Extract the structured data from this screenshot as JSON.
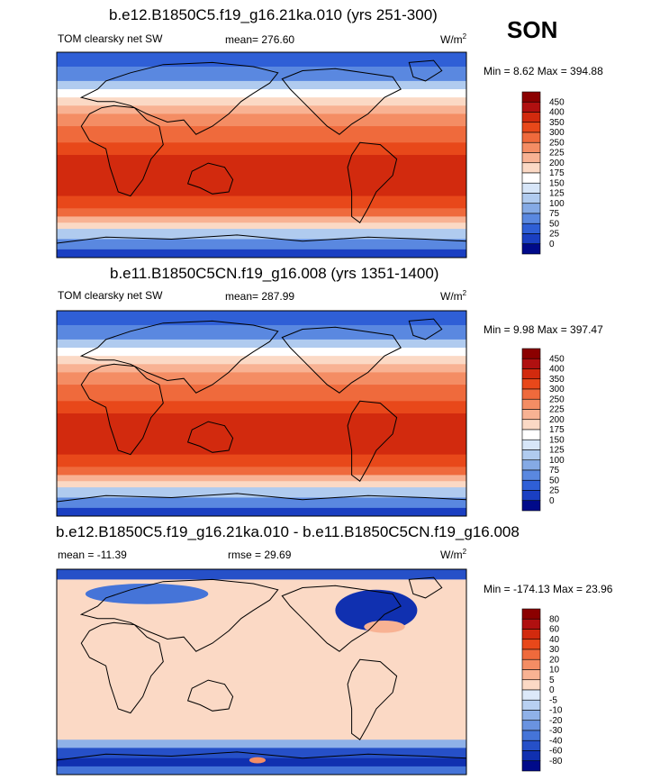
{
  "season": "SON",
  "chart_data": [
    {
      "type": "heatmap",
      "title": "b.e12.B1850C5.f19_g16.21ka.010 (yrs 251-300)",
      "variable": "TOM clearsky net SW",
      "mean_label": "mean= 276.60",
      "mean": 276.6,
      "units_base": "W/m",
      "units_exp": "2",
      "minmax_label": "Min =  8.62 Max = 394.88",
      "min": 8.62,
      "max": 394.88,
      "colorbar_levels": [
        "450",
        "400",
        "350",
        "300",
        "250",
        "225",
        "200",
        "175",
        "150",
        "125",
        "100",
        "75",
        "50",
        "25",
        "0"
      ],
      "colors": [
        "#8b0000",
        "#b01010",
        "#d22a0e",
        "#e8481a",
        "#ef6a3c",
        "#f48d64",
        "#f8b293",
        "#fbd9c5",
        "#ffffff",
        "#d7e6f8",
        "#b0cbef",
        "#85aae5",
        "#5a88e0",
        "#2f5fd6",
        "#1a3fc2",
        "#000a8a"
      ]
    },
    {
      "type": "heatmap",
      "title": "b.e11.B1850C5CN.f19_g16.008 (yrs 1351-1400)",
      "variable": "TOM clearsky net SW",
      "mean_label": "mean= 287.99",
      "mean": 287.99,
      "units_base": "W/m",
      "units_exp": "2",
      "minmax_label": "Min =  9.98 Max = 397.47",
      "min": 9.98,
      "max": 397.47,
      "colorbar_levels": [
        "450",
        "400",
        "350",
        "300",
        "250",
        "225",
        "200",
        "175",
        "150",
        "125",
        "100",
        "75",
        "50",
        "25",
        "0"
      ],
      "colors": [
        "#8b0000",
        "#b01010",
        "#d22a0e",
        "#e8481a",
        "#ef6a3c",
        "#f48d64",
        "#f8b293",
        "#fbd9c5",
        "#ffffff",
        "#d7e6f8",
        "#b0cbef",
        "#85aae5",
        "#5a88e0",
        "#2f5fd6",
        "#1a3fc2",
        "#000a8a"
      ]
    },
    {
      "type": "heatmap",
      "title": "b.e12.B1850C5.f19_g16.21ka.010 - b.e11.B1850C5CN.f19_g16.008",
      "variable": "",
      "mean_label": "mean = -11.39",
      "mean": -11.39,
      "rmse_label": "rmse =  29.69",
      "rmse": 29.69,
      "units_base": "W/m",
      "units_exp": "2",
      "minmax_label": "Min = -174.13 Max =  23.96",
      "min": -174.13,
      "max": 23.96,
      "colorbar_levels": [
        "80",
        "60",
        "40",
        "30",
        "20",
        "10",
        "5",
        "0",
        "-5",
        "-10",
        "-20",
        "-30",
        "-40",
        "-60",
        "-80"
      ],
      "colors": [
        "#8b0000",
        "#b01010",
        "#d22a0e",
        "#e8481a",
        "#ef6a3c",
        "#f48d64",
        "#f8b293",
        "#fbd9c5",
        "#dce9f9",
        "#b8d0f1",
        "#8fb1e8",
        "#6a93e0",
        "#4574d8",
        "#2650c8",
        "#1030b0",
        "#000a8a"
      ]
    }
  ]
}
